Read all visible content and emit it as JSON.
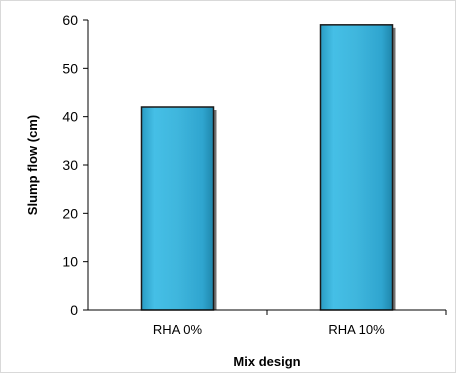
{
  "chart_data": {
    "type": "bar",
    "categories": [
      "RHA 0%",
      "RHA 10%"
    ],
    "values": [
      42,
      59
    ],
    "xlabel": "Mix design",
    "ylabel": "Slump flow (cm)",
    "ylim": [
      0,
      60
    ],
    "yticks": [
      "0",
      "10",
      "20",
      "30",
      "40",
      "50",
      "60"
    ],
    "grid": false,
    "bar_color": "#3fb6dd"
  }
}
